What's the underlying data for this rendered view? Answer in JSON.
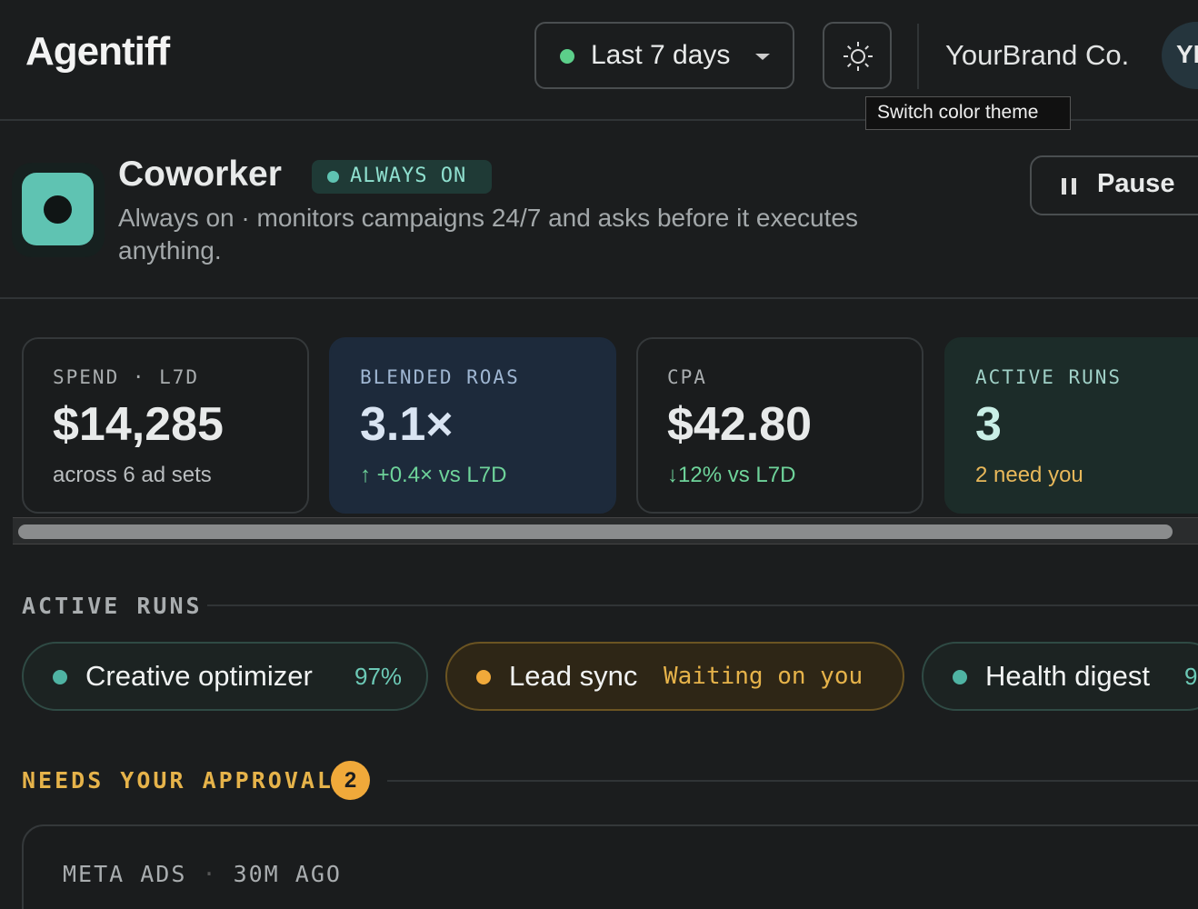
{
  "header": {
    "logo": "Agentiff",
    "date_range": "Last 7 days",
    "tooltip": "Switch color theme",
    "brand": "YourBrand Co.",
    "avatar": "YI"
  },
  "agent": {
    "name": "Coworker",
    "status": "ALWAYS ON",
    "description": "Always on · monitors campaigns 24/7 and asks before it executes anything.",
    "pause": "Pause"
  },
  "metrics": [
    {
      "label": "SPEND · L7D",
      "value": "$14,285",
      "note": "across 6 ad sets"
    },
    {
      "label": "BLENDED ROAS",
      "value": "3.1×",
      "note": "+0.4× vs L7D"
    },
    {
      "label": "CPA",
      "value": "$42.80",
      "note": "12% vs L7D"
    },
    {
      "label": "ACTIVE RUNS",
      "value": "3",
      "note": "2 need you"
    }
  ],
  "active_runs": {
    "title": "ACTIVE RUNS",
    "runs": [
      {
        "name": "Creative optimizer",
        "status": "97%"
      },
      {
        "name": "Lead sync",
        "status": "Waiting on you"
      },
      {
        "name": "Health digest",
        "status": "9"
      }
    ]
  },
  "approvals": {
    "title": "NEEDS YOUR APPROVAL",
    "count": 2,
    "cards": [
      {
        "source": "META ADS",
        "time": "30M AGO"
      }
    ]
  }
}
